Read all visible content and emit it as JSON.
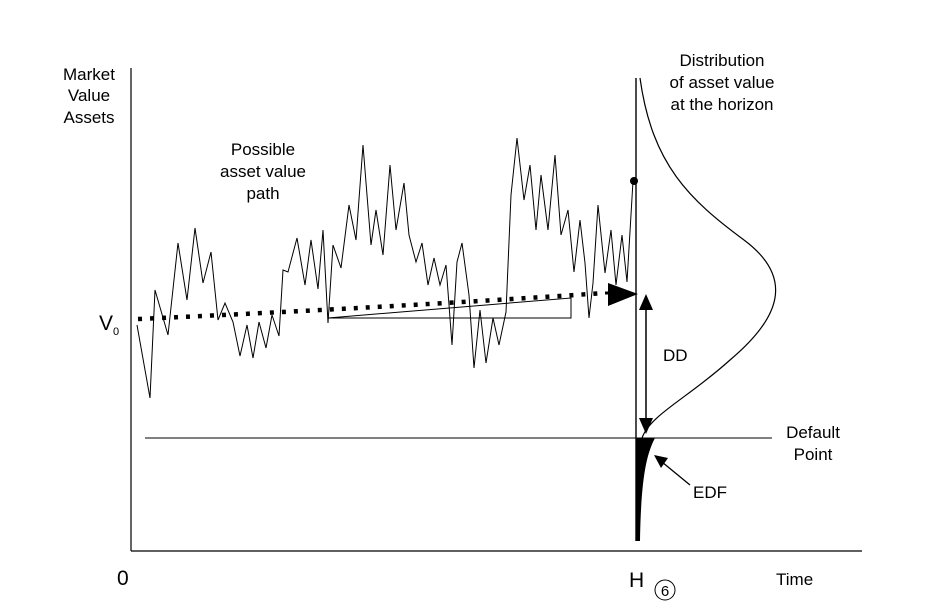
{
  "axes": {
    "y_title_lines": [
      "Market",
      "Value",
      "Assets"
    ],
    "x_label": "Time",
    "origin_label": "0",
    "horizon_label": "H",
    "horizon_marker": "6"
  },
  "start_value": {
    "label": "V",
    "subscript": "0"
  },
  "path_label_lines": [
    "Possible",
    "asset value",
    "path"
  ],
  "distribution_label_lines": [
    "Distribution",
    "of asset value",
    "at the horizon"
  ],
  "dd_label": "DD",
  "default_point_lines": [
    "Default",
    "Point"
  ],
  "edf_label": "EDF",
  "colors": {
    "line": "#000000",
    "background": "#ffffff"
  }
}
